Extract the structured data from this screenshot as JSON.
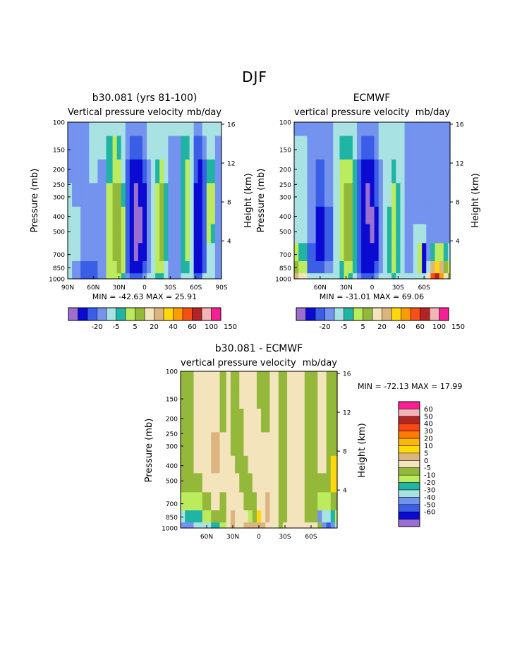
{
  "page_title": "DJF",
  "palette": {
    "full": [
      "#9b6fd0",
      "#0a0ad2",
      "#3a5ee6",
      "#7393ee",
      "#a8e2e2",
      "#1fb4a4",
      "#bdeb5e",
      "#94b83a",
      "#f4e4bc",
      "#dcb480",
      "#fdd80b",
      "#fc9c00",
      "#f85014",
      "#b42424",
      "#f2b4b4",
      "#f81e94"
    ],
    "left_labels": [
      "-20",
      "-5",
      "5",
      "20",
      "40",
      "60",
      "100",
      "150"
    ],
    "diff": [
      "#9b6fd0",
      "#0a0ad2",
      "#3a5ee6",
      "#7393ee",
      "#a8e2e2",
      "#1fb4a4",
      "#bdeb5e",
      "#94b83a",
      "#f4e4bc",
      "#dcb480",
      "#fdd80b",
      "#fcb60a",
      "#fc7a00",
      "#f84614",
      "#b42424",
      "#f2b4b4",
      "#f81e94"
    ],
    "diff_labels": [
      "60",
      "50",
      "40",
      "30",
      "20",
      "10",
      "5",
      "0",
      "-5",
      "-10",
      "-20",
      "-30",
      "-40",
      "-50",
      "-60"
    ]
  },
  "chart_data": [
    {
      "type": "heatmap",
      "id": "model",
      "title": "b30.081 (yrs 81-100)",
      "subtitle_left": "Vertical pressure velocity",
      "subtitle_right": "mb/day",
      "ylabel": "Pressure (mb)",
      "ylabel_right": "Height (km)",
      "stats": "MIN = -42.63   MAX =  25.91",
      "x_ticks": [
        "90N",
        "60N",
        "30N",
        "0",
        "30S",
        "60S",
        "90S"
      ],
      "x_tick_values": [
        90,
        60,
        30,
        0,
        -30,
        -60,
        -90
      ],
      "xlim": [
        90,
        -90
      ],
      "y_ticks": [
        "100",
        "150",
        "200",
        "250",
        "300",
        "400",
        "500",
        "700",
        "850",
        "1000"
      ],
      "y_tick_values": [
        100,
        150,
        200,
        250,
        300,
        400,
        500,
        700,
        850,
        1000
      ],
      "ylim": [
        100,
        1000
      ],
      "height_ticks": [
        "16",
        "12",
        "8",
        "4"
      ],
      "height_tick_values": [
        16,
        12,
        8,
        4
      ],
      "lat_columns": [
        90,
        80,
        70,
        60,
        50,
        40,
        35,
        30,
        25,
        20,
        15,
        10,
        5,
        0,
        -5,
        -10,
        -15,
        -20,
        -25,
        -30,
        -35,
        -40,
        -45,
        -50,
        -55,
        -60,
        -65,
        -70,
        -75,
        -80,
        -85,
        -90
      ],
      "pressure_rows": [
        100,
        150,
        200,
        300,
        400,
        500,
        700,
        850,
        1000
      ],
      "levels": [
        4,
        4,
        4,
        4,
        4,
        4,
        3,
        3,
        3
      ],
      "columns": [
        [
          3,
          3,
          3,
          4,
          4,
          4,
          4,
          4,
          4
        ],
        [
          3,
          3,
          3,
          3,
          4,
          4,
          4,
          3,
          3
        ],
        [
          3,
          3,
          3,
          3,
          3,
          3,
          3,
          2,
          2
        ],
        [
          4,
          4,
          4,
          3,
          3,
          3,
          3,
          2,
          2
        ],
        [
          4,
          4,
          3,
          3,
          3,
          3,
          3,
          3,
          3
        ],
        [
          4,
          5,
          5,
          6,
          6,
          6,
          6,
          6,
          6
        ],
        [
          4,
          6,
          6,
          7,
          7,
          7,
          7,
          6,
          6
        ],
        [
          4,
          5,
          6,
          7,
          7,
          7,
          7,
          7,
          6
        ],
        [
          4,
          4,
          4,
          5,
          6,
          6,
          6,
          6,
          5
        ],
        [
          3,
          3,
          2,
          2,
          2,
          2,
          2,
          2,
          3
        ],
        [
          3,
          2,
          1,
          1,
          1,
          1,
          1,
          1,
          2
        ],
        [
          3,
          2,
          1,
          0,
          0,
          0,
          0,
          1,
          2
        ],
        [
          3,
          2,
          1,
          1,
          0,
          0,
          1,
          1,
          2
        ],
        [
          3,
          3,
          2,
          1,
          1,
          1,
          1,
          2,
          3
        ],
        [
          4,
          4,
          3,
          3,
          3,
          3,
          3,
          3,
          4
        ],
        [
          4,
          4,
          4,
          4,
          4,
          4,
          4,
          4,
          4
        ],
        [
          4,
          4,
          5,
          6,
          6,
          6,
          6,
          6,
          5
        ],
        [
          4,
          4,
          6,
          7,
          7,
          7,
          7,
          6,
          5
        ],
        [
          4,
          4,
          4,
          5,
          5,
          5,
          5,
          4,
          4
        ],
        [
          4,
          3,
          3,
          3,
          3,
          3,
          3,
          3,
          3
        ],
        [
          4,
          3,
          3,
          3,
          3,
          3,
          3,
          3,
          3
        ],
        [
          4,
          3,
          3,
          3,
          3,
          3,
          3,
          3,
          3
        ],
        [
          4,
          5,
          5,
          5,
          5,
          5,
          5,
          5,
          4
        ],
        [
          4,
          5,
          6,
          6,
          6,
          6,
          6,
          5,
          4
        ],
        [
          4,
          4,
          4,
          4,
          4,
          4,
          4,
          4,
          4
        ],
        [
          3,
          2,
          2,
          1,
          1,
          1,
          1,
          1,
          2
        ],
        [
          3,
          2,
          1,
          1,
          1,
          1,
          1,
          1,
          2
        ],
        [
          4,
          3,
          2,
          2,
          2,
          2,
          2,
          2,
          4
        ],
        [
          4,
          4,
          5,
          6,
          6,
          6,
          4,
          4,
          4
        ],
        [
          4,
          4,
          5,
          6,
          6,
          5,
          4,
          4,
          4
        ],
        [
          4,
          3,
          3,
          3,
          3,
          3,
          3,
          3,
          3
        ],
        [
          4,
          3,
          3,
          3,
          3,
          3,
          3,
          3,
          3
        ]
      ]
    },
    {
      "type": "heatmap",
      "id": "obs",
      "title": "ECMWF",
      "subtitle_left": "vertical pressure velocity",
      "subtitle_right": "mb/day",
      "ylabel": "Pressure (mb)",
      "ylabel_right": "Height (km)",
      "stats": "MIN = -31.01   MAX =  69.06",
      "x_ticks": [
        "60N",
        "30N",
        "0",
        "30S",
        "60S"
      ],
      "x_tick_values": [
        60,
        30,
        0,
        -30,
        -60
      ],
      "xlim": [
        90,
        -90
      ],
      "y_ticks": [
        "100",
        "150",
        "200",
        "250",
        "300",
        "400",
        "500",
        "700",
        "850",
        "1000"
      ],
      "y_tick_values": [
        100,
        150,
        200,
        250,
        300,
        400,
        500,
        700,
        850,
        1000
      ],
      "ylim": [
        100,
        1000
      ],
      "height_ticks": [
        "16",
        "12",
        "8",
        "4"
      ],
      "height_tick_values": [
        16,
        12,
        8,
        4
      ],
      "lat_columns": [
        90,
        80,
        70,
        60,
        50,
        40,
        35,
        30,
        25,
        20,
        15,
        10,
        5,
        0,
        -5,
        -10,
        -15,
        -20,
        -25,
        -30,
        -35,
        -40,
        -45,
        -50,
        -55,
        -60,
        -65,
        -70,
        -75,
        -80,
        -85,
        -90
      ],
      "pressure_rows": [
        100,
        150,
        200,
        300,
        400,
        500,
        700,
        850,
        1000
      ],
      "columns": [
        [
          3,
          4,
          4,
          4,
          4,
          4,
          6,
          7,
          9
        ],
        [
          3,
          4,
          4,
          4,
          4,
          4,
          5,
          6,
          8
        ],
        [
          3,
          3,
          3,
          3,
          3,
          3,
          2,
          2,
          4
        ],
        [
          3,
          3,
          2,
          2,
          1,
          1,
          1,
          2,
          4
        ],
        [
          3,
          3,
          3,
          3,
          2,
          2,
          2,
          3,
          4
        ],
        [
          4,
          4,
          4,
          4,
          4,
          4,
          4,
          4,
          4
        ],
        [
          4,
          5,
          6,
          6,
          6,
          6,
          6,
          5,
          5
        ],
        [
          4,
          5,
          6,
          7,
          7,
          7,
          7,
          6,
          6
        ],
        [
          4,
          5,
          6,
          7,
          7,
          7,
          7,
          6,
          5
        ],
        [
          4,
          4,
          5,
          5,
          5,
          5,
          5,
          5,
          4
        ],
        [
          3,
          3,
          2,
          2,
          2,
          2,
          2,
          2,
          3
        ],
        [
          3,
          2,
          1,
          1,
          1,
          1,
          1,
          1,
          2
        ],
        [
          3,
          2,
          1,
          0,
          0,
          1,
          1,
          1,
          2
        ],
        [
          3,
          2,
          1,
          1,
          0,
          0,
          1,
          1,
          2
        ],
        [
          3,
          3,
          2,
          2,
          1,
          1,
          1,
          2,
          3
        ],
        [
          4,
          4,
          3,
          3,
          3,
          3,
          3,
          3,
          4
        ],
        [
          4,
          4,
          4,
          4,
          4,
          4,
          4,
          4,
          4
        ],
        [
          4,
          4,
          4,
          4,
          5,
          5,
          5,
          5,
          4
        ],
        [
          4,
          4,
          5,
          6,
          6,
          6,
          6,
          6,
          5
        ],
        [
          4,
          4,
          4,
          5,
          5,
          5,
          5,
          5,
          4
        ],
        [
          4,
          4,
          4,
          4,
          4,
          4,
          4,
          4,
          4
        ],
        [
          3,
          3,
          3,
          3,
          3,
          3,
          3,
          3,
          4
        ],
        [
          3,
          3,
          3,
          3,
          3,
          3,
          3,
          3,
          4
        ],
        [
          3,
          3,
          3,
          3,
          3,
          4,
          4,
          4,
          4
        ],
        [
          3,
          3,
          3,
          3,
          3,
          4,
          6,
          6,
          4
        ],
        [
          3,
          3,
          3,
          3,
          3,
          4,
          1,
          1,
          4
        ],
        [
          3,
          3,
          3,
          3,
          3,
          3,
          3,
          4,
          8
        ],
        [
          3,
          3,
          3,
          3,
          3,
          3,
          5,
          9,
          12
        ],
        [
          3,
          3,
          3,
          3,
          3,
          3,
          6,
          10,
          13
        ],
        [
          3,
          3,
          3,
          3,
          3,
          3,
          6,
          9,
          11
        ],
        [
          3,
          3,
          3,
          3,
          3,
          3,
          5,
          7,
          8
        ],
        [
          3,
          3,
          3,
          3,
          3,
          3,
          4,
          6,
          7
        ]
      ]
    },
    {
      "type": "heatmap",
      "id": "diff",
      "title": "b30.081 - ECMWF",
      "subtitle_left": "vertical pressure velocity",
      "subtitle_right": "mb/day",
      "ylabel": "Pressure (mb)",
      "ylabel_right": "Height (km)",
      "stats": "MIN = -72.13   MAX =  17.99",
      "x_ticks": [
        "60N",
        "30N",
        "0",
        "30S",
        "60S"
      ],
      "x_tick_values": [
        60,
        30,
        0,
        -30,
        -60
      ],
      "xlim": [
        90,
        -90
      ],
      "y_ticks": [
        "100",
        "150",
        "200",
        "250",
        "300",
        "400",
        "500",
        "700",
        "850",
        "1000"
      ],
      "y_tick_values": [
        100,
        150,
        200,
        250,
        300,
        400,
        500,
        700,
        850,
        1000
      ],
      "ylim": [
        100,
        1000
      ],
      "height_ticks": [
        "16",
        "12",
        "8",
        "4"
      ],
      "height_tick_values": [
        16,
        12,
        8,
        4
      ],
      "lat_columns": [
        90,
        80,
        70,
        60,
        50,
        40,
        35,
        30,
        25,
        20,
        15,
        10,
        5,
        0,
        -5,
        -10,
        -15,
        -20,
        -25,
        -30,
        -35,
        -40,
        -45,
        -50,
        -55,
        -60,
        -65,
        -70,
        -75,
        -80,
        -85,
        -90
      ],
      "pressure_rows": [
        100,
        150,
        200,
        300,
        400,
        500,
        700,
        850,
        1000
      ],
      "columns": [
        [
          7,
          7,
          7,
          7,
          7,
          7,
          6,
          4,
          3
        ],
        [
          7,
          7,
          7,
          7,
          7,
          7,
          6,
          5,
          3
        ],
        [
          8,
          8,
          8,
          8,
          8,
          7,
          6,
          5,
          4
        ],
        [
          8,
          8,
          8,
          8,
          8,
          8,
          7,
          6,
          4
        ],
        [
          8,
          8,
          8,
          9,
          9,
          8,
          8,
          7,
          5
        ],
        [
          7,
          7,
          7,
          8,
          8,
          8,
          7,
          7,
          6
        ],
        [
          8,
          8,
          8,
          8,
          8,
          8,
          8,
          8,
          8
        ],
        [
          7,
          7,
          7,
          7,
          8,
          8,
          8,
          9,
          9
        ],
        [
          7,
          7,
          7,
          7,
          7,
          8,
          8,
          8,
          8
        ],
        [
          8,
          8,
          7,
          7,
          7,
          7,
          8,
          8,
          8
        ],
        [
          8,
          8,
          8,
          8,
          7,
          7,
          7,
          8,
          9
        ],
        [
          8,
          8,
          8,
          8,
          8,
          7,
          7,
          6,
          9
        ],
        [
          8,
          8,
          8,
          8,
          8,
          8,
          7,
          7,
          9
        ],
        [
          7,
          7,
          8,
          8,
          8,
          8,
          8,
          10,
          9
        ],
        [
          7,
          7,
          7,
          8,
          8,
          8,
          8,
          8,
          9
        ],
        [
          7,
          7,
          7,
          8,
          8,
          8,
          9,
          9,
          8
        ],
        [
          8,
          8,
          8,
          8,
          8,
          8,
          8,
          8,
          8
        ],
        [
          8,
          8,
          8,
          8,
          8,
          8,
          8,
          8,
          8
        ],
        [
          7,
          7,
          7,
          7,
          7,
          7,
          7,
          7,
          7
        ],
        [
          7,
          7,
          7,
          7,
          7,
          7,
          7,
          7,
          8
        ],
        [
          8,
          8,
          8,
          8,
          8,
          8,
          8,
          8,
          8
        ],
        [
          8,
          8,
          8,
          8,
          8,
          8,
          8,
          8,
          8
        ],
        [
          8,
          8,
          8,
          8,
          8,
          8,
          8,
          8,
          8
        ],
        [
          8,
          8,
          8,
          8,
          8,
          8,
          8,
          8,
          8
        ],
        [
          7,
          7,
          7,
          7,
          7,
          7,
          7,
          7,
          8
        ],
        [
          7,
          7,
          7,
          7,
          7,
          7,
          7,
          7,
          8
        ],
        [
          7,
          7,
          7,
          7,
          7,
          7,
          7,
          7,
          8
        ],
        [
          8,
          8,
          8,
          8,
          8,
          7,
          6,
          3,
          7
        ],
        [
          8,
          8,
          8,
          8,
          8,
          7,
          6,
          4,
          3
        ],
        [
          7,
          7,
          7,
          7,
          7,
          7,
          6,
          4,
          2
        ],
        [
          7,
          7,
          7,
          7,
          10,
          10,
          7,
          5,
          3
        ],
        [
          7,
          7,
          7,
          7,
          10,
          10,
          7,
          6,
          4
        ]
      ]
    }
  ]
}
